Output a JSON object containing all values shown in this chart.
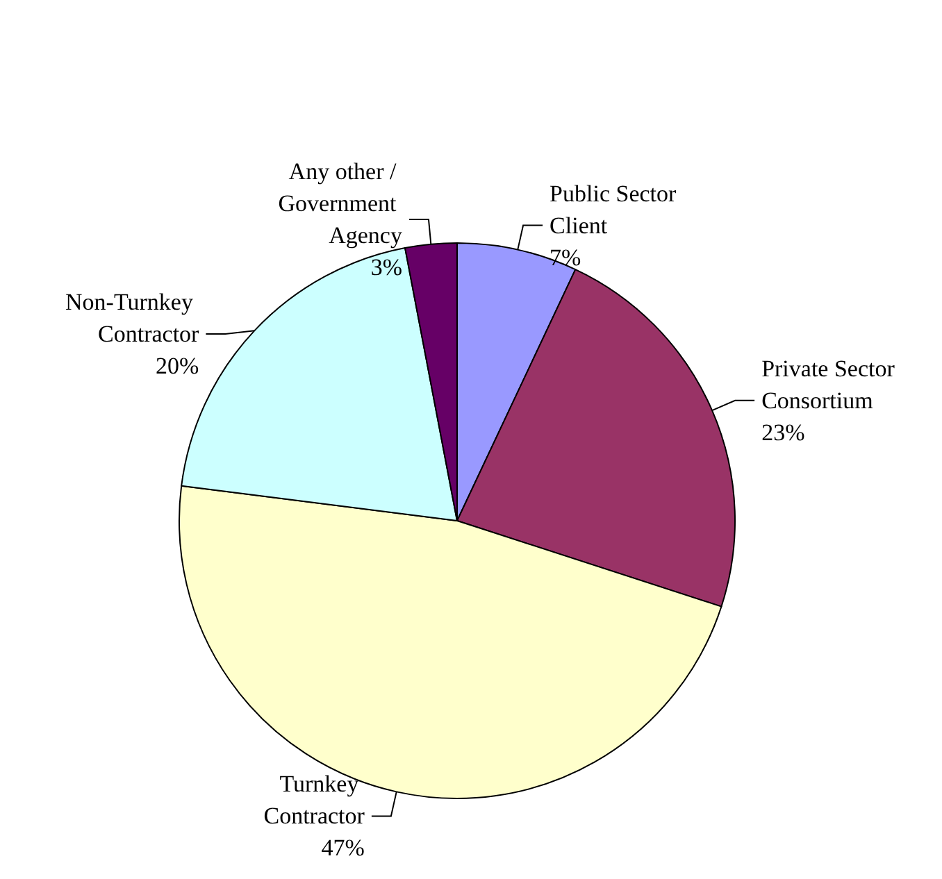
{
  "chart_data": {
    "type": "pie",
    "categories": [
      "Public Sector Client",
      "Private Sector Consortium",
      "Turnkey Contractor",
      "Non-Turnkey Contractor",
      "Any other / Government Agency"
    ],
    "values": [
      7,
      23,
      47,
      20,
      3
    ],
    "colors": [
      "#9999ff",
      "#993366",
      "#ffffcc",
      "#ccffff",
      "#660066"
    ],
    "value_labels": [
      "7%",
      "23%",
      "47%",
      "20%",
      "3%"
    ],
    "legend": false
  }
}
